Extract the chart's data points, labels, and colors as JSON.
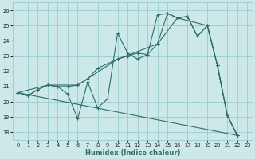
{
  "xlabel": "Humidex (Indice chaleur)",
  "bg_color": "#cce8e8",
  "grid_color": "#99cccc",
  "line_color": "#2d6e68",
  "xlim": [
    -0.5,
    23.5
  ],
  "ylim": [
    17.5,
    26.5
  ],
  "yticks": [
    18,
    19,
    20,
    21,
    22,
    23,
    24,
    25,
    26
  ],
  "xticks": [
    0,
    1,
    2,
    3,
    4,
    5,
    6,
    7,
    8,
    9,
    10,
    11,
    12,
    13,
    14,
    15,
    16,
    17,
    18,
    19,
    20,
    21,
    22,
    23
  ],
  "lines": [
    {
      "x": [
        0,
        1,
        2,
        3,
        4,
        5,
        6,
        7,
        8,
        9,
        10,
        11,
        12,
        13,
        14,
        15,
        16,
        17,
        18,
        19,
        20,
        21,
        22
      ],
      "y": [
        20.6,
        20.4,
        20.8,
        21.1,
        21.0,
        20.5,
        18.9,
        21.3,
        19.6,
        20.2,
        24.5,
        23.2,
        22.8,
        23.1,
        25.7,
        25.8,
        25.5,
        25.6,
        24.3,
        25.0,
        22.4,
        19.1,
        17.8
      ],
      "marker": true
    },
    {
      "x": [
        0,
        1,
        2,
        3,
        4,
        5,
        6,
        7,
        8,
        9,
        10,
        11,
        12,
        13,
        14,
        15,
        16,
        17,
        18,
        19,
        20,
        21,
        22
      ],
      "y": [
        20.6,
        20.4,
        20.8,
        21.1,
        21.0,
        21.0,
        21.1,
        21.5,
        22.2,
        22.5,
        22.8,
        23.0,
        23.2,
        23.1,
        23.8,
        25.8,
        25.5,
        25.6,
        24.3,
        25.0,
        22.4,
        19.1,
        17.8
      ],
      "marker": true
    },
    {
      "x": [
        0,
        3,
        6,
        10,
        14,
        16,
        19,
        20,
        21,
        22
      ],
      "y": [
        20.6,
        21.1,
        21.1,
        22.8,
        23.8,
        25.5,
        25.0,
        22.4,
        19.1,
        17.8
      ],
      "marker": true
    },
    {
      "x": [
        0,
        22
      ],
      "y": [
        20.6,
        17.8
      ],
      "marker": false
    }
  ]
}
